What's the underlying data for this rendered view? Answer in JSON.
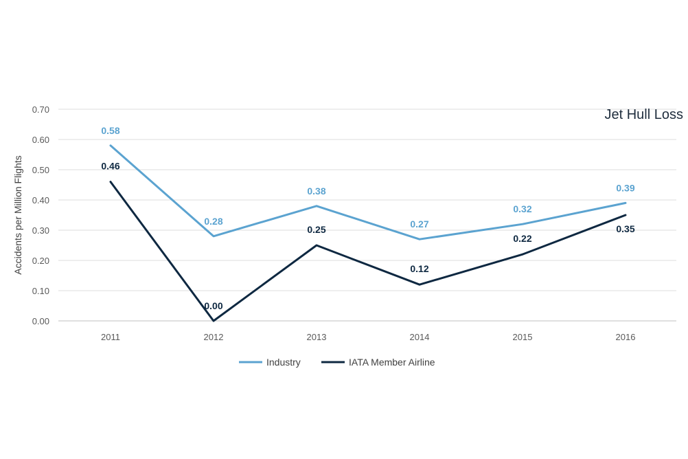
{
  "chart_data": {
    "type": "line",
    "title": "Jet Hull Loss",
    "xlabel": "",
    "ylabel": "Accidents per Million Flights",
    "categories": [
      "2011",
      "2012",
      "2013",
      "2014",
      "2015",
      "2016"
    ],
    "y_ticks": [
      "0.00",
      "0.10",
      "0.20",
      "0.30",
      "0.40",
      "0.50",
      "0.60",
      "0.70"
    ],
    "ylim": [
      0,
      0.7
    ],
    "grid": true,
    "legend_position": "bottom",
    "series": [
      {
        "name": "Industry",
        "color": "#5ba3d0",
        "values": [
          0.58,
          0.28,
          0.38,
          0.27,
          0.32,
          0.39
        ],
        "labels": [
          "0.58",
          "0.28",
          "0.38",
          "0.27",
          "0.32",
          "0.39"
        ]
      },
      {
        "name": "IATA Member Airline",
        "color": "#0e2841",
        "values": [
          0.46,
          0.0,
          0.25,
          0.12,
          0.22,
          0.35
        ],
        "labels": [
          "0.46",
          "0.00",
          "0.25",
          "0.12",
          "0.22",
          "0.35"
        ]
      }
    ]
  }
}
